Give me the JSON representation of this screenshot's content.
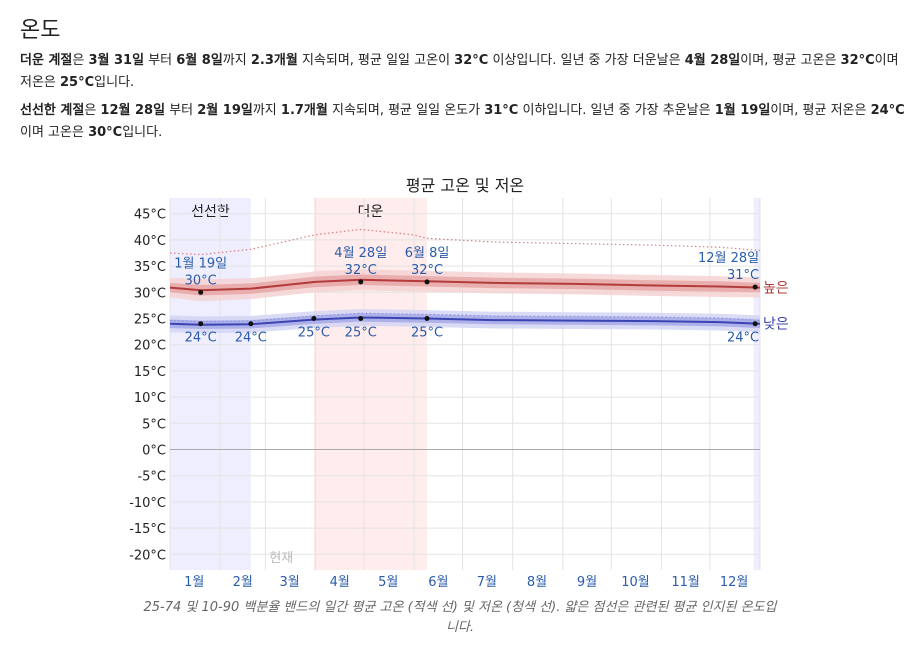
{
  "section_title": "온도",
  "hot_season": {
    "label": "더운 계절",
    "text_1": "은 ",
    "start": "3월 31일",
    "text_2": " 부터 ",
    "end": "6월 8일",
    "text_3": "까지 ",
    "duration": "2.3개월",
    "text_4": " 지속되며, 평균 일일 고온이 ",
    "threshold": "32°C",
    "text_5": " 이상입니다. 일년 중 가장 더운날은 ",
    "extreme_day": "4월 28일",
    "text_6": "이며, 평균 고온은 ",
    "avg_high": "32°C",
    "text_7": "이며 저온은 ",
    "avg_low": "25°C",
    "text_8": "입니다."
  },
  "cool_season": {
    "label": "선선한 계절",
    "text_1": "은 ",
    "start": "12월 28일",
    "text_2": " 부터 ",
    "end": "2월 19일",
    "text_3": "까지 ",
    "duration": "1.7개월",
    "text_4": " 지속되며, 평균 일일 온도가 ",
    "threshold": "31°C",
    "text_5": " 이하입니다. 일년 중 가장 추운날은 ",
    "extreme_day": "1월 19일",
    "text_6": "이며, 평균 저온은 ",
    "avg_low": "24°C",
    "text_7": "이며 고온은 ",
    "avg_high": "30°C",
    "text_8": "입니다."
  },
  "chart_data": {
    "type": "line",
    "title": "평균 고온 및 저온",
    "x_unit": "day_of_year",
    "xlim": [
      0,
      365
    ],
    "ylim": [
      -23,
      48
    ],
    "ytick_values": [
      -20,
      -15,
      -10,
      -5,
      0,
      5,
      10,
      15,
      20,
      25,
      30,
      35,
      40,
      45
    ],
    "ytick_labels": [
      "-20°C",
      "-15°C",
      "-10°C",
      "-5°C",
      "0°C",
      "5°C",
      "10°C",
      "15°C",
      "20°C",
      "25°C",
      "30°C",
      "35°C",
      "40°C",
      "45°C"
    ],
    "month_labels": [
      "1월",
      "2월",
      "3월",
      "4월",
      "5월",
      "6월",
      "7월",
      "8월",
      "9월",
      "10월",
      "11월",
      "12월"
    ],
    "month_label_days": [
      15,
      45,
      74,
      105,
      135,
      166,
      196,
      227,
      258,
      288,
      319,
      349
    ],
    "seasons": [
      {
        "name": "선선한",
        "kind": "cool",
        "start_day": 0,
        "end_day": 50
      },
      {
        "name": "더운",
        "kind": "hot",
        "start_day": 89,
        "end_day": 159
      },
      {
        "name": "",
        "kind": "cool",
        "start_day": 361,
        "end_day": 365
      }
    ],
    "now_label": "현재",
    "now_day": 80,
    "series": [
      {
        "name": "높은",
        "color": "#b33b3b",
        "x": [
          0,
          19,
          50,
          90,
          118,
          159,
          200,
          250,
          300,
          340,
          365
        ],
        "y": [
          30.9,
          30.4,
          30.7,
          32.0,
          32.4,
          32.1,
          31.8,
          31.6,
          31.3,
          31.1,
          30.9
        ],
        "band_25_75": [
          [
            30.0,
            31.8
          ],
          [
            29.4,
            31.4
          ],
          [
            29.7,
            31.7
          ],
          [
            31.0,
            33.0
          ],
          [
            31.4,
            33.4
          ],
          [
            31.1,
            33.1
          ],
          [
            30.8,
            32.8
          ],
          [
            30.6,
            32.6
          ],
          [
            30.3,
            32.3
          ],
          [
            30.1,
            32.1
          ],
          [
            30.0,
            31.8
          ]
        ],
        "band_10_90": [
          [
            29.0,
            32.8
          ],
          [
            28.3,
            32.5
          ],
          [
            28.7,
            32.7
          ],
          [
            30.0,
            34.0
          ],
          [
            30.4,
            34.4
          ],
          [
            30.1,
            34.1
          ],
          [
            29.8,
            33.8
          ],
          [
            29.6,
            33.6
          ],
          [
            29.3,
            33.3
          ],
          [
            29.1,
            33.1
          ],
          [
            29.0,
            32.8
          ]
        ]
      },
      {
        "name": "낮은",
        "color": "#3b44b3",
        "x": [
          0,
          19,
          50,
          90,
          118,
          159,
          200,
          250,
          300,
          340,
          365
        ],
        "y": [
          24.0,
          23.8,
          23.9,
          24.8,
          25.2,
          25.0,
          24.7,
          24.6,
          24.5,
          24.3,
          24.0
        ],
        "band_25_75": [
          [
            23.2,
            24.8
          ],
          [
            23.0,
            24.6
          ],
          [
            23.1,
            24.7
          ],
          [
            24.0,
            25.6
          ],
          [
            24.4,
            26.0
          ],
          [
            24.2,
            25.8
          ],
          [
            23.9,
            25.5
          ],
          [
            23.8,
            25.4
          ],
          [
            23.7,
            25.3
          ],
          [
            23.5,
            25.1
          ],
          [
            23.2,
            24.8
          ]
        ],
        "band_10_90": [
          [
            22.4,
            25.6
          ],
          [
            22.2,
            25.4
          ],
          [
            22.3,
            25.5
          ],
          [
            23.2,
            26.4
          ],
          [
            23.6,
            26.8
          ],
          [
            23.4,
            26.6
          ],
          [
            23.1,
            26.3
          ],
          [
            23.0,
            26.2
          ],
          [
            22.9,
            26.1
          ],
          [
            22.7,
            25.9
          ],
          [
            22.4,
            25.6
          ]
        ]
      }
    ],
    "perceived_high": {
      "color": "#d98080",
      "x": [
        0,
        19,
        50,
        90,
        118,
        150,
        159,
        200,
        250,
        300,
        340,
        365
      ],
      "y": [
        37.5,
        37.2,
        38.2,
        41.0,
        42.0,
        41.0,
        40.3,
        39.6,
        39.3,
        39.0,
        38.6,
        38.0
      ]
    },
    "perceived_low": {
      "color": "#8a8fd6",
      "x": [
        0,
        19,
        50,
        90,
        118,
        159,
        200,
        250,
        300,
        340,
        365
      ],
      "y": [
        24.6,
        24.4,
        24.5,
        25.5,
        26.0,
        25.8,
        25.5,
        25.4,
        25.3,
        25.1,
        24.6
      ]
    },
    "annotations": [
      {
        "x": 19,
        "y": 30,
        "date": "1월 19일",
        "value": "30°C",
        "pos": "above",
        "series": "high"
      },
      {
        "x": 118,
        "y": 32,
        "date": "4월 28일",
        "value": "32°C",
        "pos": "above",
        "series": "high"
      },
      {
        "x": 159,
        "y": 32,
        "date": "6월 8일",
        "value": "32°C",
        "pos": "above",
        "series": "high"
      },
      {
        "x": 362,
        "y": 31,
        "date": "12월 28일",
        "value": "31°C",
        "pos": "above",
        "series": "high"
      },
      {
        "x": 19,
        "y": 24,
        "date": "",
        "value": "24°C",
        "pos": "below",
        "series": "low"
      },
      {
        "x": 50,
        "y": 24,
        "date": "",
        "value": "24°C",
        "pos": "below",
        "series": "low"
      },
      {
        "x": 89,
        "y": 25,
        "date": "",
        "value": "25°C",
        "pos": "below",
        "series": "low"
      },
      {
        "x": 118,
        "y": 25,
        "date": "",
        "value": "25°C",
        "pos": "below",
        "series": "low"
      },
      {
        "x": 159,
        "y": 25,
        "date": "",
        "value": "25°C",
        "pos": "below",
        "series": "low"
      },
      {
        "x": 362,
        "y": 24,
        "date": "",
        "value": "24°C",
        "pos": "below",
        "series": "low"
      }
    ],
    "colors": {
      "cool_band": "#eeeeff",
      "hot_band": "#ffecec",
      "high_band_inner": "#e6a3a3",
      "high_band_outer": "#f4d1d1",
      "low_band_inner": "#a3a6e6",
      "low_band_outer": "#d1d3f4",
      "label_blue": "#2a5caa",
      "high_label": "#b33b3b",
      "low_label": "#3b44b3"
    }
  },
  "caption": "25-74 및 10-90 백분율 밴드의 일간 평균 고온 (적색 선) 및 저온 (청색 선). 얇은 점선은 관련된 평균 인지된 온도입니다."
}
